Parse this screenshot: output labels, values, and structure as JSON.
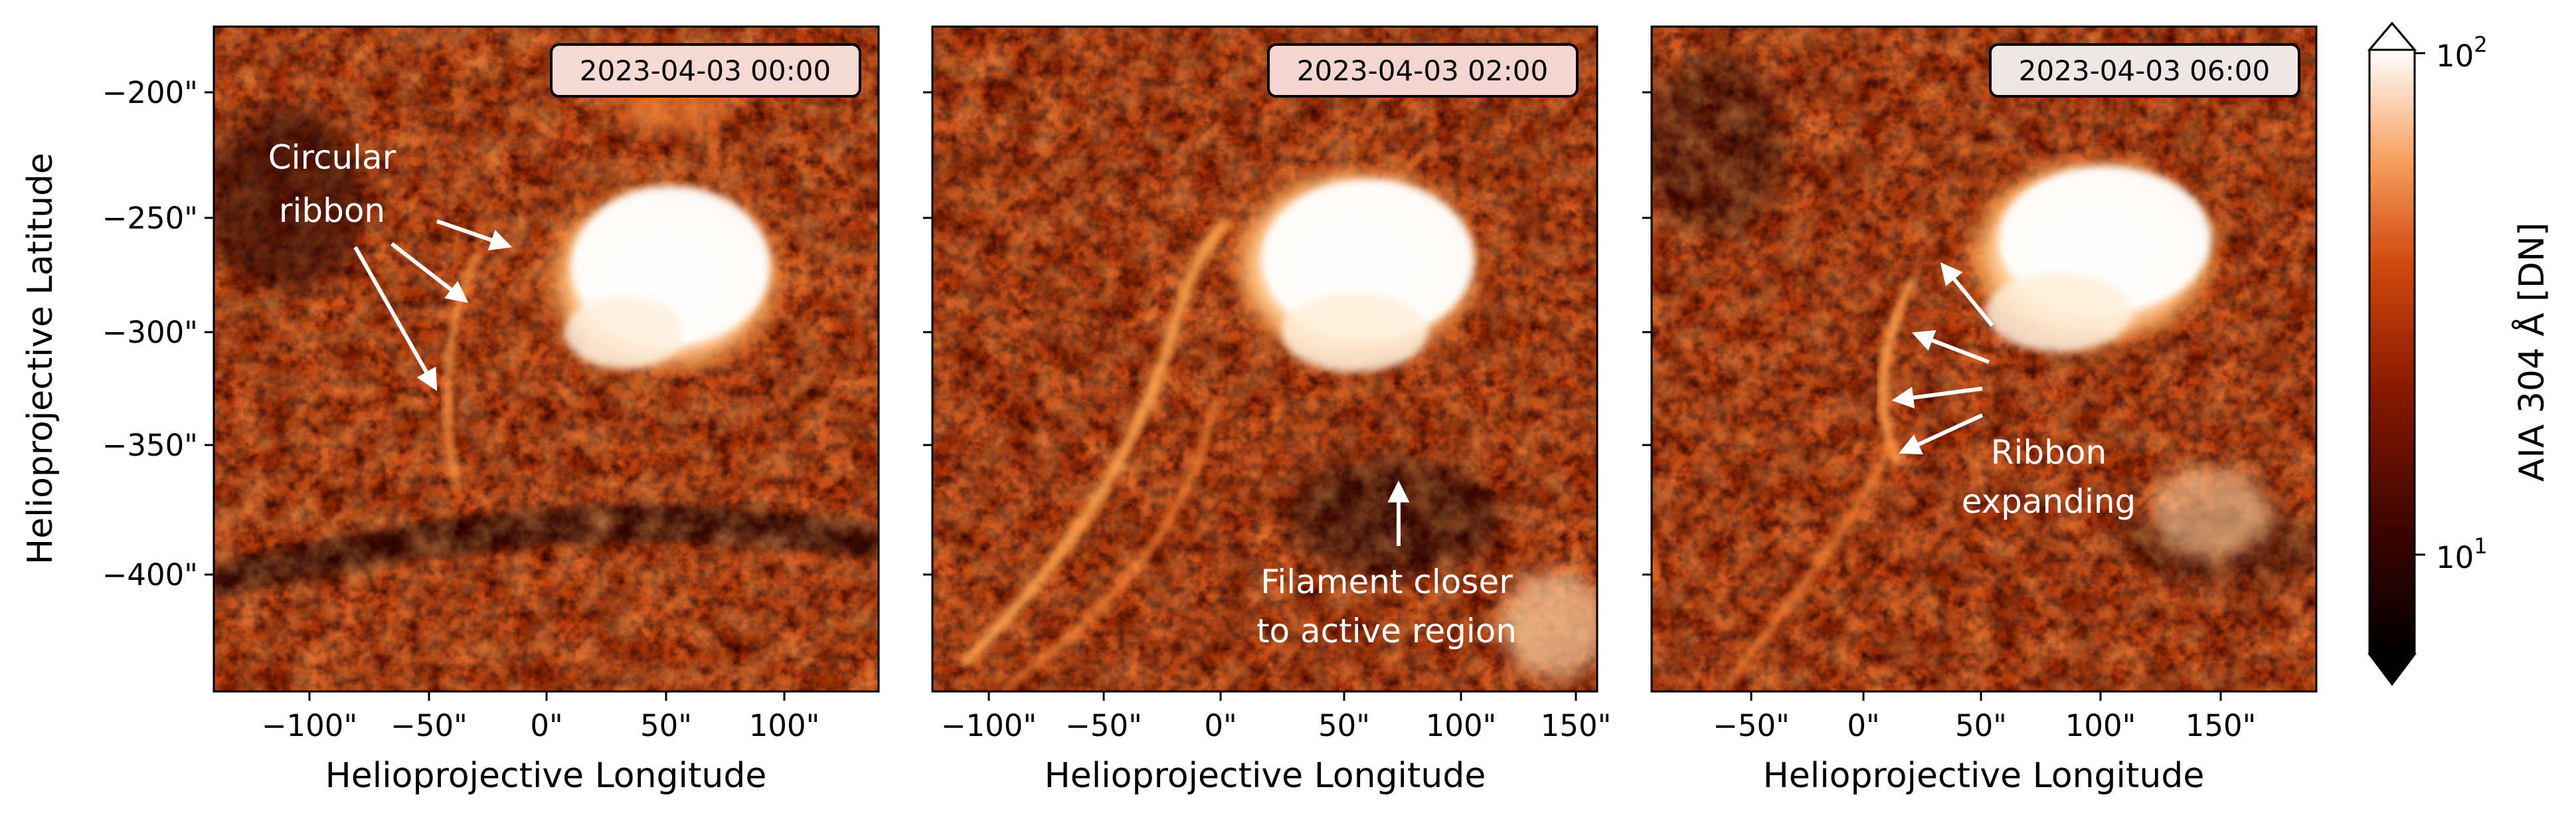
{
  "colors": {
    "background": "#ffffff",
    "map_dark": "#2b0300",
    "map_mid": "#9c2a00",
    "map_bright": "#ff9a3c",
    "map_saturated": "#ffffff",
    "annotation_text": "#ffffff",
    "arrow": "#ffffff"
  },
  "y_axis": {
    "label": "Helioprojective Latitude",
    "ticks": [
      "−200\"",
      "−250\"",
      "−300\"",
      "−350\"",
      "−400\""
    ]
  },
  "panels": [
    {
      "timestamp": "2023-04-03 00:00",
      "x_label": "Helioprojective Longitude",
      "x_ticks": [
        "−100\"",
        "−50\"",
        "0\"",
        "50\"",
        "100\""
      ],
      "annotation": [
        "Circular",
        "ribbon"
      ]
    },
    {
      "timestamp": "2023-04-03 02:00",
      "x_label": "Helioprojective Longitude",
      "x_ticks": [
        "−100\"",
        "−50\"",
        "0\"",
        "50\"",
        "100\"",
        "150\""
      ],
      "annotation": [
        "Filament closer",
        "to active region"
      ]
    },
    {
      "timestamp": "2023-04-03 06:00",
      "x_label": "Helioprojective Longitude",
      "x_ticks": [
        "−50\"",
        "0\"",
        "50\"",
        "100\"",
        "150\""
      ],
      "annotation": [
        "Ribbon",
        "expanding"
      ]
    }
  ],
  "colorbar": {
    "label": "AIA 304 Å [DN]",
    "scale": "log",
    "tick_top_base": "10",
    "tick_top_exp": "2",
    "tick_bottom_base": "10",
    "tick_bottom_exp": "1",
    "extend": "both"
  }
}
